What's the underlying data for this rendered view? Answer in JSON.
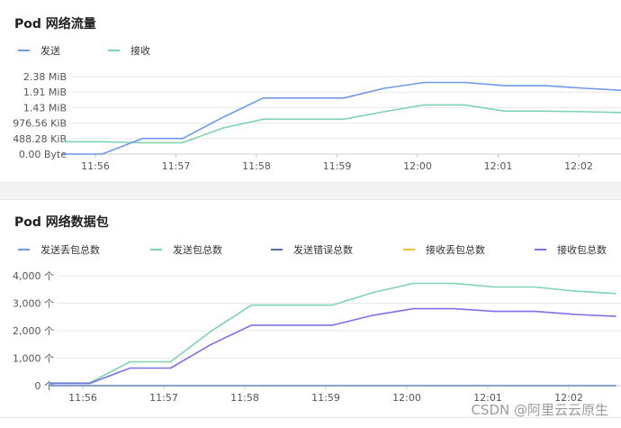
{
  "charts": [
    {
      "title": "Pod 网络流量",
      "legend": [
        {
          "name": "发送",
          "color": "#6f99e8"
        },
        {
          "name": "接收",
          "color": "#7fd3ae"
        }
      ]
    },
    {
      "title": "Pod 网络数据包",
      "legend": [
        {
          "name": "发送丢包总数",
          "color": "#6f99e8"
        },
        {
          "name": "发送包总数",
          "color": "#7fd3ae"
        },
        {
          "name": "发送错误总数",
          "color": "#5a6ea8"
        },
        {
          "name": "接收丢包总数",
          "color": "#f2c12e"
        },
        {
          "name": "接收包总数",
          "color": "#7b72e9"
        }
      ]
    }
  ],
  "chart_data": [
    {
      "type": "line",
      "title": "Pod 网络流量",
      "x": [
        "11:55:35",
        "11:56:05",
        "11:56:35",
        "11:57:05",
        "11:57:35",
        "11:58:05",
        "11:58:35",
        "11:59:05",
        "11:59:35",
        "12:00:05",
        "12:00:35",
        "12:01:05",
        "12:01:35",
        "12:02:05",
        "12:02:35"
      ],
      "x_ticks": [
        "11:56",
        "11:57",
        "11:58",
        "11:59",
        "12:00",
        "12:01",
        "12:02"
      ],
      "y_ticks": [
        "0.00 Byte",
        "488.28 KiB",
        "976.56 KiB",
        "1.43 MiB",
        "1.91 MiB",
        "2.38 MiB"
      ],
      "ylim_mib": [
        0,
        2.38
      ],
      "grid": true,
      "legend_position": "top-left",
      "series": [
        {
          "name": "发送",
          "color": "#6f99e8",
          "values_mib": [
            0.0,
            0.0,
            0.48,
            0.48,
            1.13,
            1.72,
            1.72,
            1.72,
            2.02,
            2.2,
            2.2,
            2.1,
            2.1,
            2.02,
            1.95
          ]
        },
        {
          "name": "接收",
          "color": "#7fd3ae",
          "values_mib": [
            0.38,
            0.38,
            0.35,
            0.35,
            0.8,
            1.07,
            1.07,
            1.07,
            1.3,
            1.51,
            1.51,
            1.32,
            1.32,
            1.3,
            1.27
          ]
        }
      ]
    },
    {
      "type": "line",
      "title": "Pod 网络数据包",
      "x": [
        "11:55:35",
        "11:56:05",
        "11:56:35",
        "11:57:05",
        "11:57:35",
        "11:58:05",
        "11:58:35",
        "11:59:05",
        "11:59:35",
        "12:00:05",
        "12:00:35",
        "12:01:05",
        "12:01:35",
        "12:02:05",
        "12:02:35"
      ],
      "x_ticks": [
        "11:56",
        "11:57",
        "11:58",
        "11:59",
        "12:00",
        "12:01",
        "12:02"
      ],
      "y_ticks": [
        "0 个",
        "1,000 个",
        "2,000 个",
        "3,000 个",
        "4,000 个"
      ],
      "ylim": [
        0,
        4000
      ],
      "grid": true,
      "legend_position": "top-left",
      "series": [
        {
          "name": "发送丢包总数",
          "color": "#6f99e8",
          "values": [
            0,
            0,
            0,
            0,
            0,
            0,
            0,
            0,
            0,
            0,
            0,
            0,
            0,
            0,
            0
          ]
        },
        {
          "name": "发送包总数",
          "color": "#7fd3ae",
          "values": [
            100,
            100,
            870,
            870,
            1980,
            2930,
            2930,
            2930,
            3390,
            3720,
            3720,
            3590,
            3590,
            3440,
            3350
          ]
        },
        {
          "name": "发送错误总数",
          "color": "#5a6ea8",
          "values": [
            0,
            0,
            0,
            0,
            0,
            0,
            0,
            0,
            0,
            0,
            0,
            0,
            0,
            0,
            0
          ]
        },
        {
          "name": "接收丢包总数",
          "color": "#f2c12e",
          "values": [
            0,
            0,
            0,
            0,
            0,
            0,
            0,
            0,
            0,
            0,
            0,
            0,
            0,
            0,
            0
          ]
        },
        {
          "name": "接收包总数",
          "color": "#7b72e9",
          "values": [
            80,
            80,
            640,
            640,
            1500,
            2200,
            2200,
            2200,
            2560,
            2800,
            2800,
            2700,
            2700,
            2590,
            2520
          ]
        }
      ]
    }
  ],
  "watermark": "CSDN @阿里云云原生"
}
